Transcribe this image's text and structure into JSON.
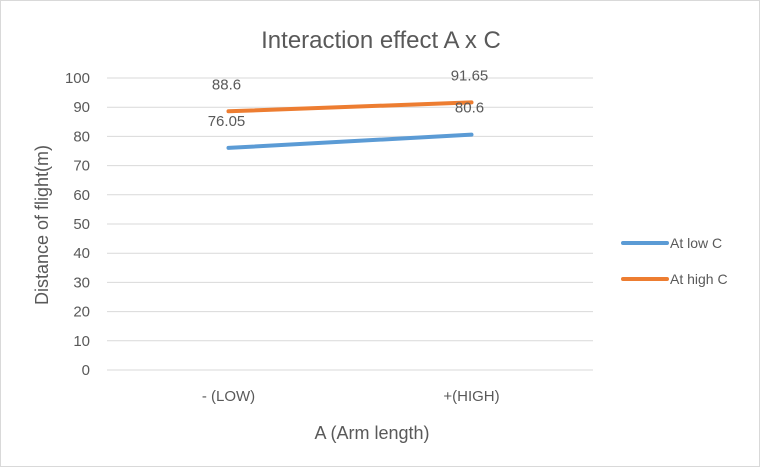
{
  "chart_data": {
    "type": "line",
    "title": "Interaction effect A x C",
    "xlabel": "A (Arm length)",
    "ylabel": "Distance of flight(m)",
    "categories": [
      "- (LOW)",
      "+(HIGH)"
    ],
    "ylim": [
      0,
      100
    ],
    "yticks": [
      0,
      10,
      20,
      30,
      40,
      50,
      60,
      70,
      80,
      90,
      100
    ],
    "grid": true,
    "legend_position": "right",
    "series": [
      {
        "name": "At low C",
        "values": [
          76.05,
          80.6
        ],
        "labels": [
          "76.05",
          "80.6"
        ],
        "color": "#5b9bd5"
      },
      {
        "name": "At high C",
        "values": [
          88.6,
          91.65
        ],
        "labels": [
          "88.6",
          "91.65"
        ],
        "color": "#ed7d31"
      }
    ]
  }
}
